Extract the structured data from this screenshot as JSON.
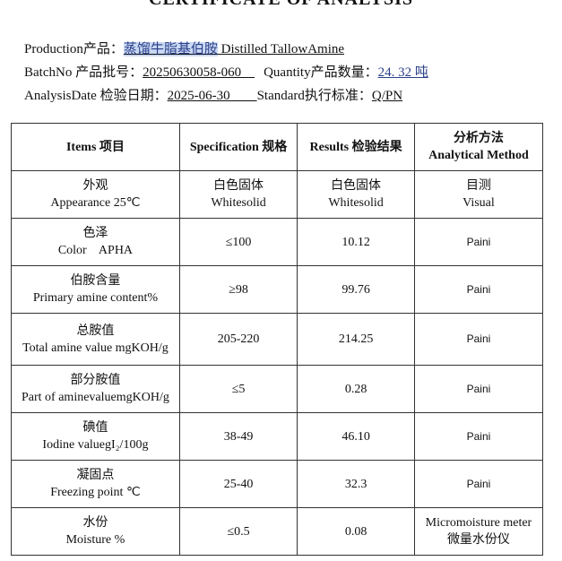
{
  "title": "CERTIFICATE OF ANALYSIS",
  "header": {
    "production_label": "Production产品：",
    "production_cn": "蒸馏牛脂基伯胺",
    "production_en": " Distilled TallowAmine",
    "batch_label": "BatchNo 产品批号：",
    "batch_value": "20250630058-060    ",
    "quantity_label": "Quantity产品数量：",
    "quantity_value": "24. 32  吨",
    "date_label": "AnalysisDate 检验日期：",
    "date_value": "2025-06-30        ",
    "standard_label": "Standard执行标准：",
    "standard_value": "Q/PN"
  },
  "table": {
    "headers": [
      "Items 项目",
      "Specification 规格",
      "Results 检验结果",
      "分析方法",
      "Analytical Method"
    ],
    "rows": [
      {
        "item_cn": "外观",
        "item_en": "Appearance 25℃",
        "spec_cn": "白色固体",
        "spec": "Whitesolid",
        "result_cn": "白色固体",
        "result": "Whitesolid",
        "method_cn": "目测",
        "method": "Visual"
      },
      {
        "item_cn": "色泽",
        "item_en": "Color    APHA",
        "spec": "≤100",
        "result": "10.12",
        "method": "Paini"
      },
      {
        "item_cn": "伯胺含量",
        "item_en": "Primary amine content%",
        "spec": "≥98",
        "result": "99.76",
        "method": "Paini"
      },
      {
        "item_cn": "总胺值",
        "item_en": "Total amine value mgKOH/g",
        "spec": "205-220",
        "result": "214.25",
        "method": "Paini"
      },
      {
        "item_cn": "部分胺值",
        "item_en": "Part of aminevaluemgKOH/g",
        "spec": "≤5",
        "result": "0.28",
        "method": "Paini"
      },
      {
        "item_cn": "碘值",
        "item_en": "Iodine valuegI₂/100g",
        "spec": "38-49",
        "result": "46.10",
        "method": "Paini"
      },
      {
        "item_cn": "凝固点",
        "item_en": "Freezing point ℃",
        "spec": "25-40",
        "result": "32.3",
        "method": "Paini"
      },
      {
        "item_cn": "水份",
        "item_en": "Moisture %",
        "spec": "≤0.5",
        "result": "0.08",
        "method": "Micromoisture meter",
        "method_cn": "微量水份仪"
      }
    ]
  }
}
